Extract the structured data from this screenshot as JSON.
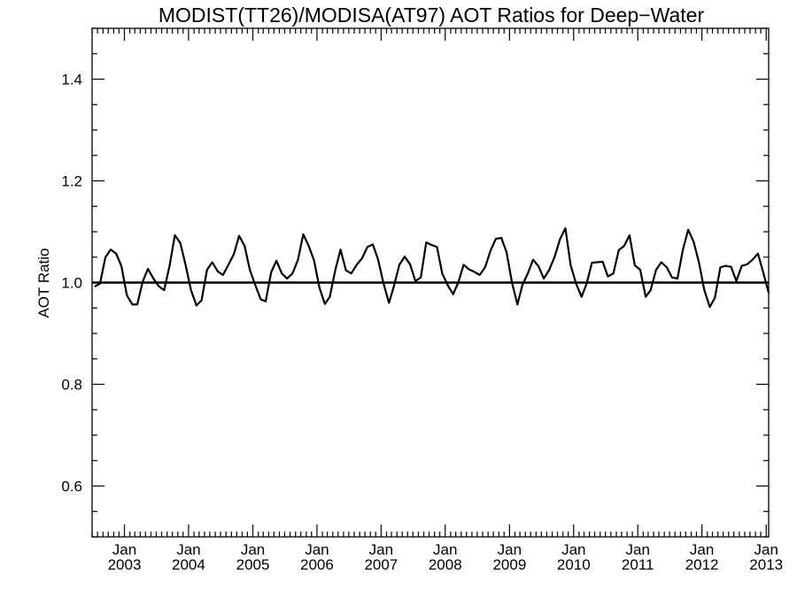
{
  "chart_data": {
    "type": "line",
    "title": "MODIST(TT26)/MODISA(AT97)  AOT Ratios for Deep−Water",
    "xlabel": "",
    "ylabel": "AOT Ratio",
    "ylim": [
      0.5,
      1.5
    ],
    "xlim": [
      "2002-07-01",
      "2013-01-15"
    ],
    "y_ticks": [
      0.6,
      0.8,
      1.0,
      1.2,
      1.4
    ],
    "y_tick_labels": [
      "0.6",
      "0.8",
      "1.0",
      "1.2",
      "1.4"
    ],
    "x_ticks": [
      {
        "date": "2003-01-01",
        "month": "Jan",
        "year": "2003"
      },
      {
        "date": "2004-01-01",
        "month": "Jan",
        "year": "2004"
      },
      {
        "date": "2005-01-01",
        "month": "Jan",
        "year": "2005"
      },
      {
        "date": "2006-01-01",
        "month": "Jan",
        "year": "2006"
      },
      {
        "date": "2007-01-01",
        "month": "Jan",
        "year": "2007"
      },
      {
        "date": "2008-01-01",
        "month": "Jan",
        "year": "2008"
      },
      {
        "date": "2009-01-01",
        "month": "Jan",
        "year": "2009"
      },
      {
        "date": "2010-01-01",
        "month": "Jan",
        "year": "2010"
      },
      {
        "date": "2011-01-01",
        "month": "Jan",
        "year": "2011"
      },
      {
        "date": "2012-01-01",
        "month": "Jan",
        "year": "2012"
      },
      {
        "date": "2013-01-01",
        "month": "Jan",
        "year": "2013"
      }
    ],
    "reference_line": 1.0,
    "grid": false,
    "series": [
      {
        "x": [
          "2002-07",
          "2002-08",
          "2002-09",
          "2002-10",
          "2002-11",
          "2002-12",
          "2003-01",
          "2003-02",
          "2003-03",
          "2003-04",
          "2003-05",
          "2003-06",
          "2003-07",
          "2003-08",
          "2003-09",
          "2003-10",
          "2003-11",
          "2003-12",
          "2004-01",
          "2004-02",
          "2004-03",
          "2004-04",
          "2004-05",
          "2004-06",
          "2004-07",
          "2004-08",
          "2004-09",
          "2004-10",
          "2004-11",
          "2004-12",
          "2005-01",
          "2005-02",
          "2005-03",
          "2005-04",
          "2005-05",
          "2005-06",
          "2005-07",
          "2005-08",
          "2005-09",
          "2005-10",
          "2005-11",
          "2005-12",
          "2006-01",
          "2006-02",
          "2006-03",
          "2006-04",
          "2006-05",
          "2006-06",
          "2006-07",
          "2006-08",
          "2006-09",
          "2006-10",
          "2006-11",
          "2006-12",
          "2007-01",
          "2007-02",
          "2007-03",
          "2007-04",
          "2007-05",
          "2007-06",
          "2007-07",
          "2007-08",
          "2007-09",
          "2007-10",
          "2007-11",
          "2007-12",
          "2008-01",
          "2008-02",
          "2008-03",
          "2008-04",
          "2008-05",
          "2008-06",
          "2008-07",
          "2008-08",
          "2008-09",
          "2008-10",
          "2008-11",
          "2008-12",
          "2009-01",
          "2009-02",
          "2009-03",
          "2009-04",
          "2009-05",
          "2009-06",
          "2009-07",
          "2009-08",
          "2009-09",
          "2009-10",
          "2009-11",
          "2009-12",
          "2010-01",
          "2010-02",
          "2010-03",
          "2010-04",
          "2010-05",
          "2010-06",
          "2010-07",
          "2010-08",
          "2010-09",
          "2010-10",
          "2010-11",
          "2010-12",
          "2011-01",
          "2011-02",
          "2011-03",
          "2011-04",
          "2011-05",
          "2011-06",
          "2011-07",
          "2011-08",
          "2011-09",
          "2011-10",
          "2011-11",
          "2011-12",
          "2012-01",
          "2012-02",
          "2012-03",
          "2012-04",
          "2012-05",
          "2012-06",
          "2012-07",
          "2012-08",
          "2012-09",
          "2012-10",
          "2012-11",
          "2012-12",
          "2013-01"
        ],
        "values": [
          0.992,
          0.998,
          1.05,
          1.065,
          1.057,
          1.032,
          0.975,
          0.957,
          0.957,
          1.002,
          1.027,
          1.008,
          0.993,
          0.985,
          1.033,
          1.093,
          1.078,
          1.035,
          0.985,
          0.955,
          0.965,
          1.025,
          1.04,
          1.022,
          1.015,
          1.035,
          1.056,
          1.092,
          1.072,
          1.025,
          0.995,
          0.967,
          0.963,
          1.02,
          1.043,
          1.018,
          1.008,
          1.018,
          1.045,
          1.095,
          1.072,
          1.044,
          0.99,
          0.958,
          0.972,
          1.024,
          1.065,
          1.024,
          1.018,
          1.035,
          1.048,
          1.07,
          1.075,
          1.045,
          0.998,
          0.96,
          0.993,
          1.035,
          1.051,
          1.036,
          1.003,
          1.01,
          1.079,
          1.074,
          1.07,
          1.018,
          0.995,
          0.977,
          1.0,
          1.035,
          1.026,
          1.021,
          1.015,
          1.03,
          1.063,
          1.086,
          1.088,
          1.06,
          1.0,
          0.957,
          0.995,
          1.018,
          1.045,
          1.032,
          1.008,
          1.025,
          1.051,
          1.085,
          1.107,
          1.034,
          0.998,
          0.972,
          0.997,
          1.039,
          1.04,
          1.041,
          1.012,
          1.018,
          1.064,
          1.072,
          1.093,
          1.034,
          1.025,
          0.972,
          0.985,
          1.025,
          1.04,
          1.03,
          1.01,
          1.008,
          1.065,
          1.104,
          1.08,
          1.04,
          0.985,
          0.952,
          0.97,
          1.03,
          1.033,
          1.031,
          1.003,
          1.033,
          1.036,
          1.045,
          1.057,
          1.02,
          0.98
        ]
      }
    ]
  }
}
